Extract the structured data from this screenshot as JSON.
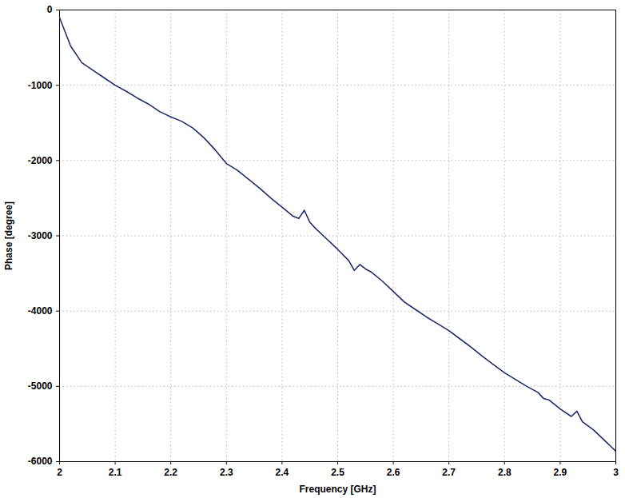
{
  "chart_data": {
    "type": "line",
    "x_label": "Frequency [GHz]",
    "y_label": "Phase [degree]",
    "xlim": [
      2,
      3
    ],
    "ylim": [
      -6000,
      0
    ],
    "xticks": [
      2,
      2.1,
      2.2,
      2.3,
      2.4,
      2.5,
      2.6,
      2.7,
      2.8,
      2.9,
      3
    ],
    "yticks": [
      -6000,
      -5000,
      -4000,
      -3000,
      -2000,
      -1000,
      0
    ],
    "grid": true,
    "color": "#1f2d6b",
    "x": [
      2.0,
      2.02,
      2.04,
      2.06,
      2.08,
      2.1,
      2.12,
      2.14,
      2.16,
      2.18,
      2.2,
      2.22,
      2.24,
      2.26,
      2.28,
      2.3,
      2.32,
      2.34,
      2.36,
      2.38,
      2.4,
      2.42,
      2.43,
      2.44,
      2.45,
      2.46,
      2.48,
      2.5,
      2.52,
      2.53,
      2.54,
      2.55,
      2.56,
      2.58,
      2.6,
      2.62,
      2.64,
      2.66,
      2.68,
      2.7,
      2.72,
      2.74,
      2.76,
      2.78,
      2.8,
      2.82,
      2.84,
      2.86,
      2.87,
      2.88,
      2.9,
      2.92,
      2.93,
      2.94,
      2.96,
      2.98,
      3.0
    ],
    "values": [
      -100,
      -480,
      -700,
      -800,
      -900,
      -1000,
      -1080,
      -1170,
      -1250,
      -1350,
      -1420,
      -1480,
      -1570,
      -1700,
      -1860,
      -2040,
      -2130,
      -2250,
      -2370,
      -2500,
      -2620,
      -2740,
      -2770,
      -2660,
      -2820,
      -2900,
      -3040,
      -3180,
      -3330,
      -3460,
      -3380,
      -3440,
      -3480,
      -3600,
      -3740,
      -3880,
      -3980,
      -4080,
      -4170,
      -4260,
      -4370,
      -4480,
      -4600,
      -4710,
      -4820,
      -4910,
      -5000,
      -5080,
      -5160,
      -5180,
      -5300,
      -5400,
      -5330,
      -5470,
      -5580,
      -5720,
      -5860
    ]
  }
}
